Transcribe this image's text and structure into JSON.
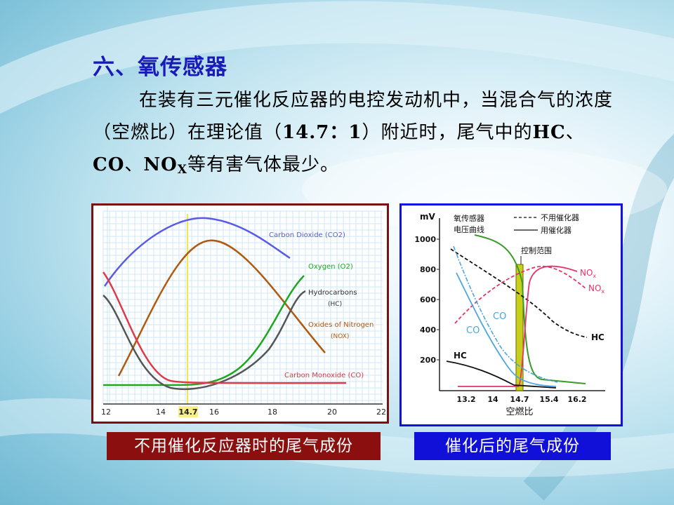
{
  "title": "六、氧传感器",
  "paragraph": {
    "part1": "在装有三元催化反应器的电控发动机中，当混合气的浓度（空燃比）在理论值（",
    "ratio": "14.7：1",
    "part2": "）附近时，尾气中的",
    "hc": "HC",
    "sep1": "、",
    "co": "CO",
    "sep2": "、",
    "nox": "NO",
    "nox_sub": "X",
    "part3": "等有害气体最少。"
  },
  "left_chart": {
    "x_ticks": [
      "12",
      "14",
      "14.7",
      "16",
      "18",
      "20",
      "22"
    ],
    "labels": {
      "co2": "Carbon Dioxide (CO2)",
      "o2": "Oxygen (O2)",
      "hc1": "Hydrocarbons",
      "hc2": "(HC)",
      "nox1": "Oxides of Nitrogen",
      "nox2": "(NOX)",
      "co": "Carbon Monoxide (CO)"
    },
    "colors": {
      "co2": "#5a5ae6",
      "o2": "#1fa81f",
      "hc": "#555555",
      "nox": "#b05a10",
      "co": "#e03a4a"
    }
  },
  "right_chart": {
    "y_unit": "mV",
    "y_ticks": [
      "1000",
      "800",
      "600",
      "400",
      "200"
    ],
    "x_ticks": [
      "13.2",
      "14",
      "14.7",
      "15.4",
      "16.2"
    ],
    "x_label": "空燃比",
    "sensor_label1": "氧传感器",
    "sensor_label2": "电压曲线",
    "legend_dashed": "不用催化器",
    "legend_solid": "用催化器",
    "control_range": "控制范围",
    "nox_a": "NO",
    "nox_b": "NO",
    "nox_sub": "x",
    "hc_a": "HC",
    "hc_b": "HC",
    "co_a": "CO",
    "co_b": "CO"
  },
  "captions": {
    "left": "不用催化反应器时的尾气成份",
    "right": "催化后的尾气成份"
  }
}
